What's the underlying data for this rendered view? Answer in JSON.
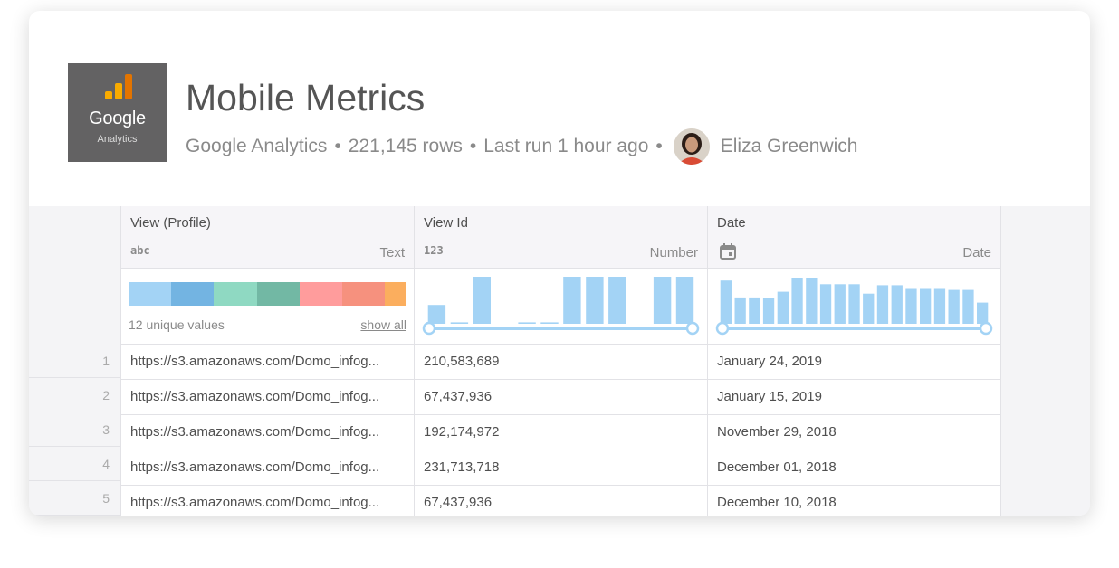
{
  "header": {
    "logo_word": "Google",
    "logo_sub": "Analytics",
    "title": "Mobile Metrics",
    "source": "Google Analytics",
    "rows": "221,145 rows",
    "last_run": "Last run 1 hour ago",
    "separator": "•",
    "user": "Eliza Greenwich",
    "logo_bar_colors": [
      "#f9ab00",
      "#f9ab00",
      "#e37400"
    ]
  },
  "columns": [
    {
      "name": "View (Profile)",
      "type_icon": "abc",
      "type_label": "Text"
    },
    {
      "name": "View Id",
      "type_icon": "123",
      "type_label": "Number"
    },
    {
      "name": "Date",
      "type_icon": "calendar-icon",
      "type_label": "Date"
    }
  ],
  "summary": {
    "unique_values": "12 unique values",
    "show_all": "show all",
    "category_colors": [
      "#a3d3f5",
      "#73b4e2",
      "#8fd9c2",
      "#72b8a4",
      "#ff9c9c",
      "#f6917e",
      "#fbae5e"
    ],
    "category_weights": [
      1,
      1,
      1,
      1,
      1,
      1,
      0.5
    ],
    "hist_color": "#a3d3f5",
    "number_hist": [
      0.4,
      0.03,
      1.0,
      0,
      0.03,
      0.03,
      1.0,
      1.0,
      1.0,
      0,
      1.0,
      1.0
    ],
    "date_hist": [
      0.92,
      0.56,
      0.56,
      0.54,
      0.68,
      0.98,
      0.98,
      0.84,
      0.84,
      0.84,
      0.64,
      0.82,
      0.82,
      0.76,
      0.76,
      0.76,
      0.72,
      0.72,
      0.45
    ]
  },
  "rows": [
    {
      "num": "1",
      "view": "https://s3.amazonaws.com/Domo_infog...",
      "id": "210,583,689",
      "date": "January 24, 2019"
    },
    {
      "num": "2",
      "view": "https://s3.amazonaws.com/Domo_infog...",
      "id": "67,437,936",
      "date": "January 15, 2019"
    },
    {
      "num": "3",
      "view": "https://s3.amazonaws.com/Domo_infog...",
      "id": "192,174,972",
      "date": "November 29, 2018"
    },
    {
      "num": "4",
      "view": "https://s3.amazonaws.com/Domo_infog...",
      "id": "231,713,718",
      "date": "December 01, 2018"
    },
    {
      "num": "5",
      "view": "https://s3.amazonaws.com/Domo_infog...",
      "id": "67,437,936",
      "date": "December 10, 2018"
    }
  ]
}
